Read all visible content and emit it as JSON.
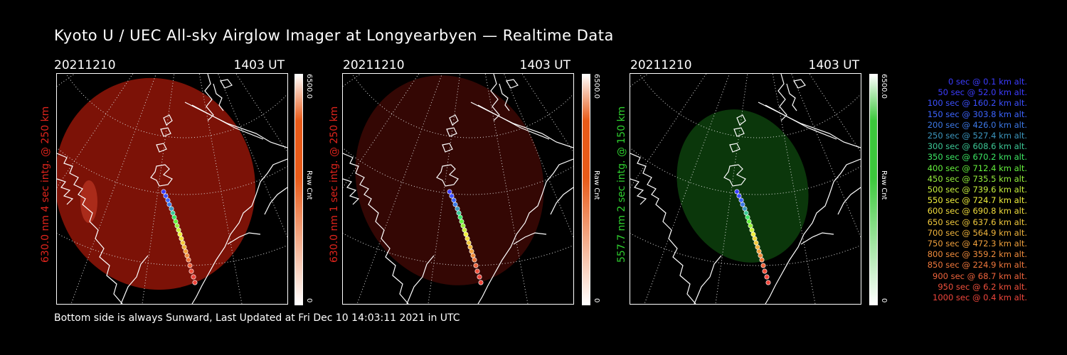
{
  "title": "Kyoto U / UEC All-sky Airglow Imager at Longyearbyen — Realtime Data",
  "footer": "Bottom side is always Sunward, Last Updated at Fri Dec 10 14:03:11 2021 in UTC",
  "panels": [
    {
      "date": "20211210",
      "time": "1403 UT",
      "label": "630.0 nm 4 sec intg. @ 250 km",
      "label_color": "#e0241c",
      "cbar_max": "6500.0",
      "cbar_min": "0",
      "cbar_unit": "Raw Cnt",
      "cbar_color": "#e85a18",
      "fill_color": "#8a1408",
      "fill_opacity": "0.9"
    },
    {
      "date": "20211210",
      "time": "1403 UT",
      "label": "630.0 nm 1 sec intg. @ 250 km",
      "label_color": "#e0241c",
      "cbar_max": "6500.0",
      "cbar_min": "0",
      "cbar_unit": "Raw Cnt",
      "cbar_color": "#e85a18",
      "fill_color": "#3a0804",
      "fill_opacity": "0.9"
    },
    {
      "date": "20211210",
      "time": "1403 UT",
      "label": "557.7 nm 2 sec intg. @ 150 km",
      "label_color": "#2ed02e",
      "cbar_max": "6500.0",
      "cbar_min": "0",
      "cbar_unit": "Raw Cnt",
      "cbar_color": "#3cc83c",
      "fill_color": "#0c3a0c",
      "fill_opacity": "0.95"
    }
  ],
  "legend": [
    {
      "text": "0 sec @   0.1 km alt.",
      "color": "#3c3cff"
    },
    {
      "text": "50 sec @  52.0 km alt.",
      "color": "#3c3cff"
    },
    {
      "text": "100 sec @ 160.2 km alt.",
      "color": "#3c50ff"
    },
    {
      "text": "150 sec @ 303.8 km alt.",
      "color": "#3c64ff"
    },
    {
      "text": "200 sec @ 426.0 km alt.",
      "color": "#3c78e6"
    },
    {
      "text": "250 sec @ 527.4 km alt.",
      "color": "#3c96be"
    },
    {
      "text": "300 sec @ 608.6 km alt.",
      "color": "#3cc896"
    },
    {
      "text": "350 sec @ 670.2 km alt.",
      "color": "#3ce664"
    },
    {
      "text": "400 sec @ 712.4 km alt.",
      "color": "#64f03c"
    },
    {
      "text": "450 sec @ 735.5 km alt.",
      "color": "#96f03c"
    },
    {
      "text": "500 sec @ 739.6 km alt.",
      "color": "#c8f03c"
    },
    {
      "text": "550 sec @ 724.7 km alt.",
      "color": "#f0f03c"
    },
    {
      "text": "600 sec @ 690.8 km alt.",
      "color": "#f0dc3c"
    },
    {
      "text": "650 sec @ 637.6 km alt.",
      "color": "#f0c83c"
    },
    {
      "text": "700 sec @ 564.9 km alt.",
      "color": "#f0b43c"
    },
    {
      "text": "750 sec @ 472.3 km alt.",
      "color": "#f0a03c"
    },
    {
      "text": "800 sec @ 359.2 km alt.",
      "color": "#f08c3c"
    },
    {
      "text": "850 sec @ 224.9 km alt.",
      "color": "#f0783c"
    },
    {
      "text": "900 sec @  68.7 km alt.",
      "color": "#f0643c"
    },
    {
      "text": "950 sec @   6.2 km alt.",
      "color": "#f0503c"
    },
    {
      "text": "1000 sec @   0.4 km alt.",
      "color": "#f0463c"
    }
  ],
  "track_colors": [
    "#3c3cff",
    "#3c50ff",
    "#3c64ff",
    "#3c78e6",
    "#3c96be",
    "#3cc896",
    "#3ce664",
    "#64f03c",
    "#96f03c",
    "#c8f03c",
    "#f0f03c",
    "#f0dc3c",
    "#f0c83c",
    "#f0b43c",
    "#f0a03c",
    "#f08c3c",
    "#f0783c",
    "#f0643c",
    "#f0503c",
    "#f0463c",
    "#f0463c"
  ]
}
